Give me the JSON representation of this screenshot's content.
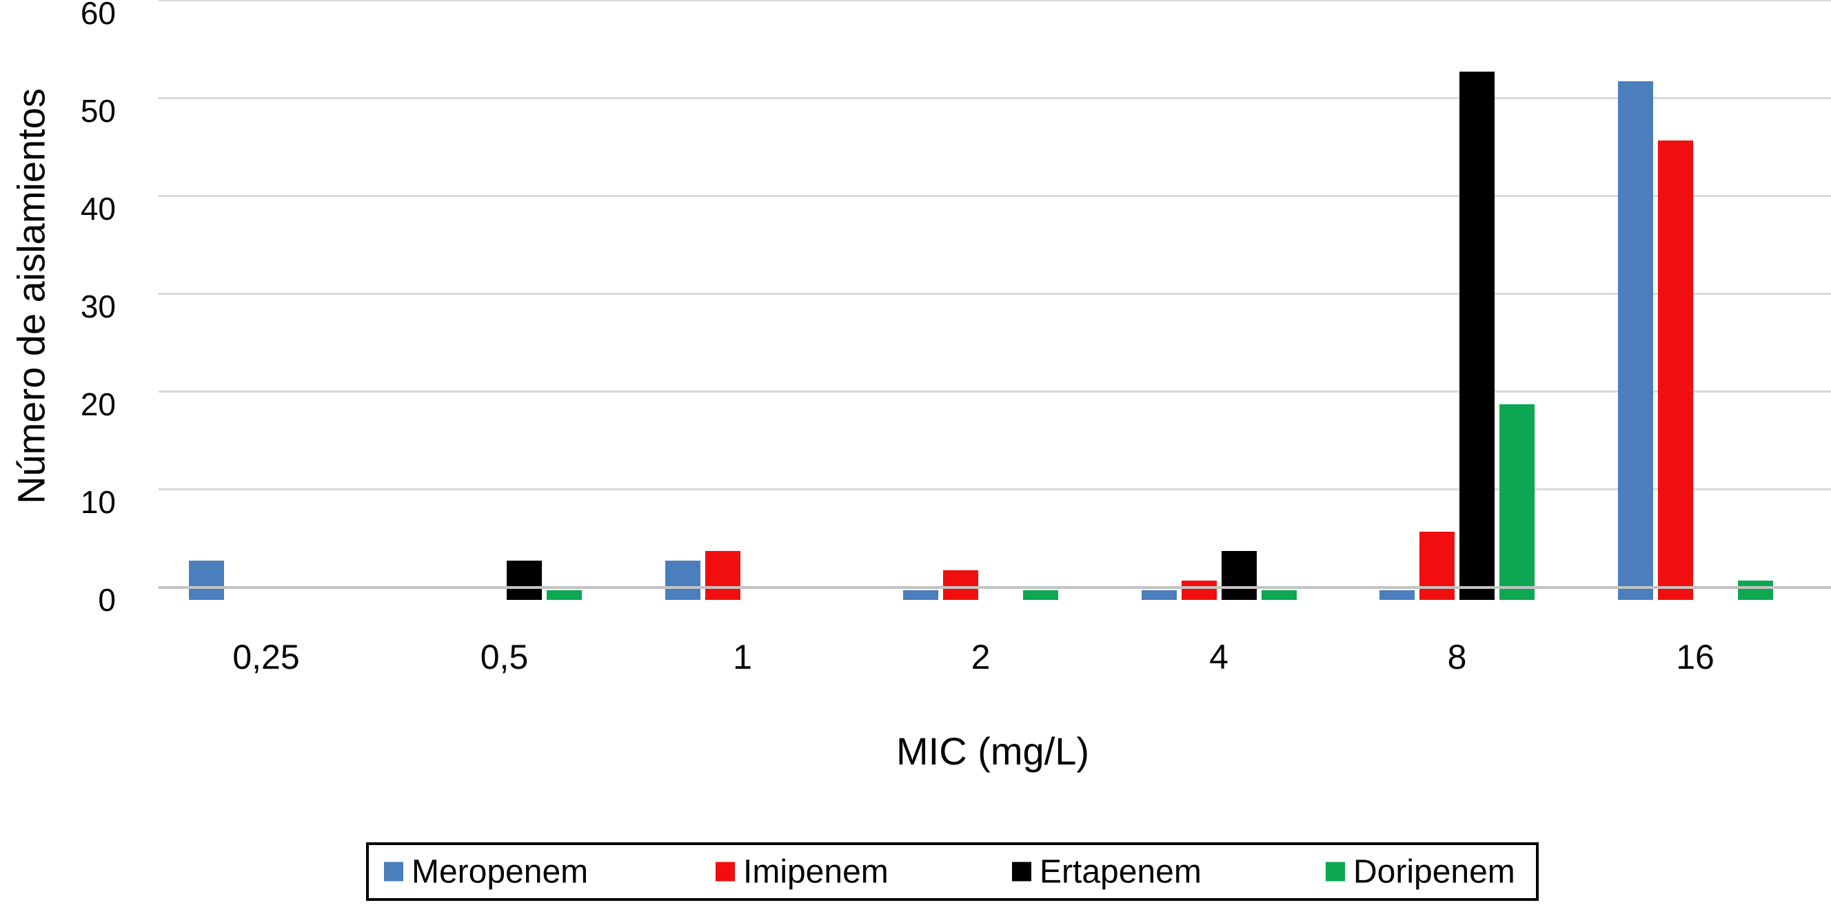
{
  "chart_data": {
    "type": "bar",
    "title": "",
    "categories": [
      "0,25",
      "0,5",
      "1",
      "2",
      "4",
      "8",
      "16"
    ],
    "series": [
      {
        "name": "Meropenem",
        "color": "#4a7ebc",
        "values": [
          4,
          0,
          4,
          1,
          1,
          1,
          53
        ]
      },
      {
        "name": "Imipenem",
        "color": "#f10e0e",
        "values": [
          0,
          0,
          5,
          3,
          2,
          7,
          47
        ]
      },
      {
        "name": "Ertapenem",
        "color": "#000000",
        "values": [
          0,
          4,
          0,
          0,
          5,
          54,
          0
        ]
      },
      {
        "name": "Doripenem",
        "color": "#0ca750",
        "values": [
          0,
          1,
          0,
          1,
          1,
          20,
          2
        ]
      }
    ],
    "xlabel": "MIC (mg/L)",
    "ylabel": "Número de aislamientos",
    "ylim": [
      0,
      60
    ],
    "yticks": [
      0,
      10,
      20,
      30,
      40,
      50,
      60
    ],
    "grid": true,
    "legend_position": "bottom",
    "legend_border_color": "#000000",
    "gridline_color": "#d9d9d9",
    "baseline_color": "#c3c3c3",
    "background_color": "#ffffff"
  }
}
